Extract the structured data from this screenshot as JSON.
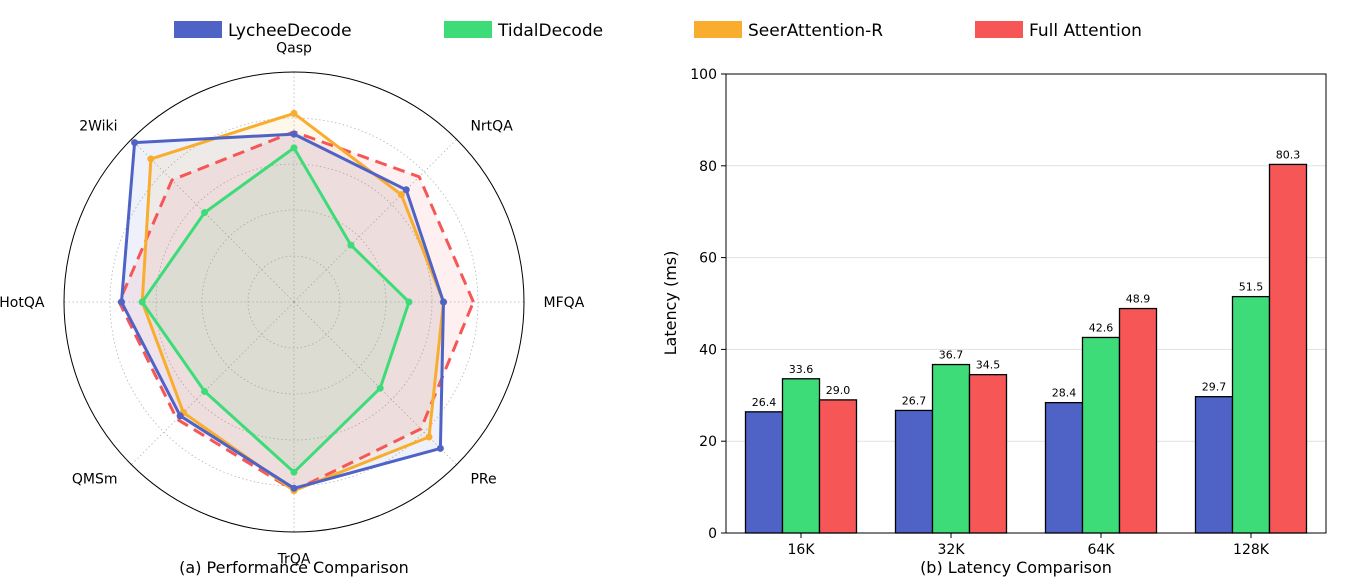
{
  "legend": [
    {
      "name": "LycheeDecode",
      "color": "#4f63c7"
    },
    {
      "name": "TidalDecode",
      "color": "#3ddc79"
    },
    {
      "name": "SeerAttention-R",
      "color": "#f9ad2e"
    },
    {
      "name": "Full Attention",
      "color": "#f65656"
    }
  ],
  "chart_data": [
    {
      "type": "radar",
      "caption": "(a) Performance Comparison",
      "axes": [
        "MFQA",
        "NrtQA",
        "Qasp",
        "2Wiki",
        "HotQA",
        "QMSm",
        "TrQA",
        "PRe"
      ],
      "rmax": 1.0,
      "series": [
        {
          "name": "Full Attention",
          "color": "#f65656",
          "style": "dashed",
          "values": [
            0.78,
            0.77,
            0.74,
            0.75,
            0.76,
            0.72,
            0.82,
            0.78
          ]
        },
        {
          "name": "SeerAttention-R",
          "color": "#f9ad2e",
          "style": "solid",
          "values": [
            0.65,
            0.66,
            0.82,
            0.88,
            0.66,
            0.68,
            0.82,
            0.83
          ]
        },
        {
          "name": "TidalDecode",
          "color": "#3ddc79",
          "style": "solid",
          "values": [
            0.5,
            0.35,
            0.67,
            0.55,
            0.66,
            0.55,
            0.74,
            0.53
          ]
        },
        {
          "name": "LycheeDecode",
          "color": "#4f63c7",
          "style": "solid",
          "values": [
            0.65,
            0.69,
            0.73,
            0.98,
            0.75,
            0.7,
            0.81,
            0.9
          ]
        }
      ]
    },
    {
      "type": "bar",
      "caption": "(b) Latency Comparison",
      "categories": [
        "16K",
        "32K",
        "64K",
        "128K"
      ],
      "ylabel": "Latency (ms)",
      "ylim": [
        0,
        100
      ],
      "yticks": [
        0,
        20,
        40,
        60,
        80,
        100
      ],
      "series": [
        {
          "name": "LycheeDecode",
          "color": "#4f63c7",
          "values": [
            26.4,
            26.7,
            28.4,
            29.7
          ],
          "labels": [
            "26.4",
            "26.7",
            "28.4",
            "29.7"
          ]
        },
        {
          "name": "TidalDecode",
          "color": "#3ddc79",
          "values": [
            33.6,
            36.7,
            42.6,
            51.5
          ],
          "labels": [
            "33.6",
            "36.7",
            "42.6",
            "51.5"
          ]
        },
        {
          "name": "Full Attention",
          "color": "#f65656",
          "values": [
            29.0,
            34.5,
            48.9,
            80.3
          ],
          "labels": [
            "29.0",
            "34.5",
            "48.9",
            "80.3"
          ]
        }
      ]
    }
  ]
}
